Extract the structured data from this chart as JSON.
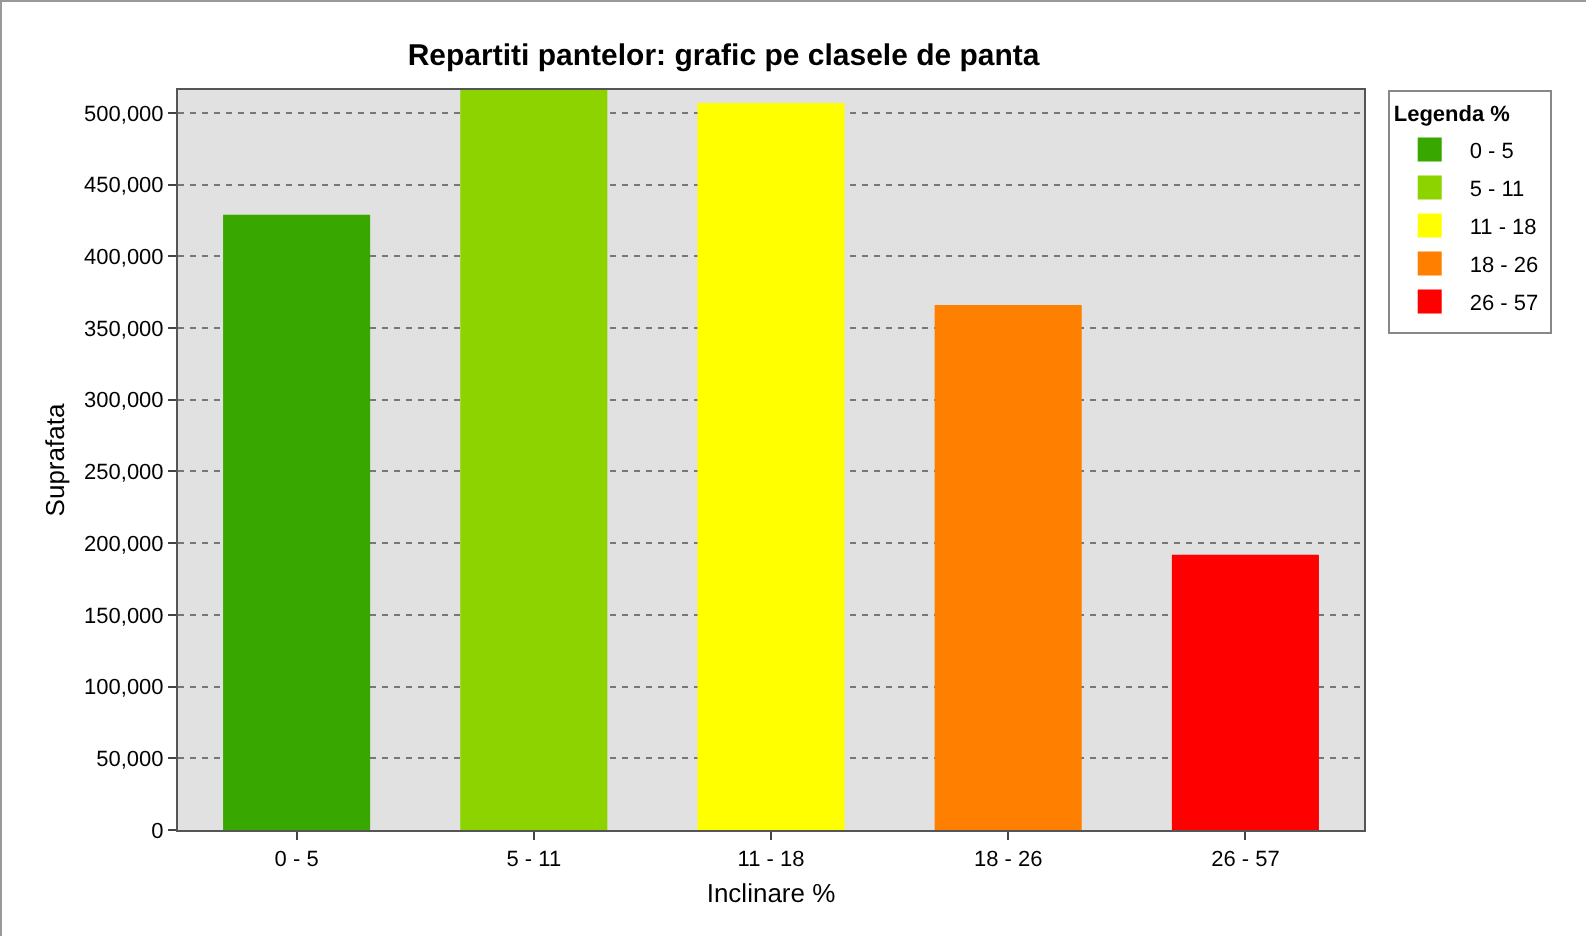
{
  "chart_data": {
    "type": "bar",
    "title": "Repartiti pantelor: grafic pe clasele de panta",
    "xlabel": "Inclinare %",
    "ylabel": "Suprafata",
    "legend_title": "Legenda %",
    "categories": [
      "0 - 5",
      "5 - 11",
      "11 - 18",
      "18 - 26",
      "26 - 57"
    ],
    "series": [
      {
        "name": "0 - 5",
        "color": "#38a800",
        "values": [
          429000,
          null,
          null,
          null,
          null
        ]
      },
      {
        "name": "5 - 11",
        "color": "#8cd300",
        "values": [
          null,
          516000,
          null,
          null,
          null
        ]
      },
      {
        "name": "11 - 18",
        "color": "#ffff00",
        "values": [
          null,
          null,
          507000,
          null,
          null
        ]
      },
      {
        "name": "18 - 26",
        "color": "#ff8000",
        "values": [
          null,
          null,
          null,
          366000,
          null
        ]
      },
      {
        "name": "26 - 57",
        "color": "#ff0000",
        "values": [
          null,
          null,
          null,
          null,
          192000
        ]
      }
    ],
    "ylim": [
      0,
      516000
    ],
    "yticks": [
      {
        "value": 0,
        "label": "0"
      },
      {
        "value": 50000,
        "label": "50,000"
      },
      {
        "value": 100000,
        "label": "100,000"
      },
      {
        "value": 150000,
        "label": "150,000"
      },
      {
        "value": 200000,
        "label": "200,000"
      },
      {
        "value": 250000,
        "label": "250,000"
      },
      {
        "value": 300000,
        "label": "300,000"
      },
      {
        "value": 350000,
        "label": "350,000"
      },
      {
        "value": 400000,
        "label": "400,000"
      },
      {
        "value": 450000,
        "label": "450,000"
      },
      {
        "value": 500000,
        "label": "500,000"
      }
    ],
    "grid": "y",
    "legend": "top right"
  }
}
